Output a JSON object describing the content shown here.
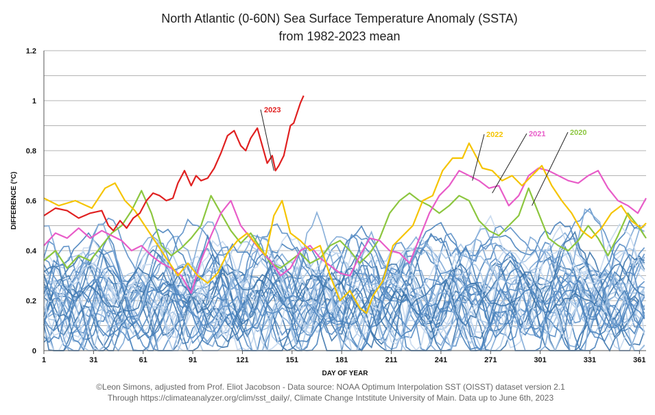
{
  "chart_data": {
    "type": "line",
    "title": "North Atlantic (0-60N) Sea Surface Temperature Anomaly (SSTA)",
    "subtitle": "from 1982-2023 mean",
    "xlabel": "DAY OF YEAR",
    "ylabel": "DIFFERENCE (°C)",
    "xlim": [
      1,
      365
    ],
    "ylim": [
      0,
      1.2
    ],
    "x_ticks": [
      1,
      31,
      61,
      91,
      121,
      151,
      181,
      211,
      241,
      271,
      301,
      331,
      361
    ],
    "y_ticks": [
      0,
      0.2,
      0.4,
      0.6,
      0.8,
      1,
      1.2
    ],
    "y_tick_labels": [
      "0",
      "0.2",
      "0.4",
      "0.6",
      "0.8",
      "1",
      "1.2"
    ],
    "grid": "horizontal",
    "highlighted_series": [
      {
        "name": "2023",
        "color": "#e02020",
        "x": [
          1,
          8,
          15,
          22,
          29,
          36,
          40,
          43,
          47,
          51,
          55,
          59,
          63,
          67,
          71,
          75,
          79,
          82,
          86,
          90,
          93,
          96,
          100,
          104,
          108,
          112,
          116,
          120,
          123,
          126,
          130,
          133,
          136,
          139,
          141,
          143,
          146,
          148,
          150,
          152,
          154,
          156,
          158
        ],
        "values": [
          0.54,
          0.57,
          0.56,
          0.53,
          0.55,
          0.56,
          0.5,
          0.48,
          0.52,
          0.49,
          0.53,
          0.55,
          0.6,
          0.63,
          0.62,
          0.6,
          0.61,
          0.67,
          0.72,
          0.66,
          0.7,
          0.68,
          0.69,
          0.73,
          0.79,
          0.86,
          0.88,
          0.82,
          0.8,
          0.85,
          0.89,
          0.82,
          0.75,
          0.78,
          0.72,
          0.74,
          0.78,
          0.84,
          0.9,
          0.91,
          0.95,
          0.99,
          1.02
        ]
      },
      {
        "name": "2022",
        "color": "#f5c400",
        "x": [
          1,
          10,
          20,
          30,
          38,
          44,
          50,
          56,
          62,
          70,
          76,
          82,
          88,
          94,
          100,
          106,
          112,
          118,
          124,
          130,
          135,
          140,
          145,
          150,
          156,
          162,
          168,
          174,
          180,
          186,
          192,
          196,
          200,
          206,
          212,
          218,
          224,
          230,
          236,
          242,
          248,
          254,
          258,
          262,
          266,
          272,
          278,
          284,
          290,
          296,
          302,
          308,
          314,
          320,
          326,
          332,
          338,
          344,
          350,
          356,
          362,
          365
        ],
        "values": [
          0.61,
          0.58,
          0.6,
          0.57,
          0.65,
          0.67,
          0.6,
          0.56,
          0.5,
          0.42,
          0.36,
          0.3,
          0.35,
          0.3,
          0.27,
          0.31,
          0.39,
          0.44,
          0.47,
          0.42,
          0.38,
          0.54,
          0.6,
          0.47,
          0.44,
          0.4,
          0.42,
          0.3,
          0.2,
          0.24,
          0.17,
          0.15,
          0.22,
          0.28,
          0.42,
          0.46,
          0.5,
          0.6,
          0.62,
          0.72,
          0.77,
          0.77,
          0.83,
          0.78,
          0.73,
          0.72,
          0.68,
          0.7,
          0.66,
          0.7,
          0.74,
          0.66,
          0.6,
          0.55,
          0.48,
          0.45,
          0.49,
          0.55,
          0.58,
          0.52,
          0.49,
          0.51
        ]
      },
      {
        "name": "2021",
        "color": "#e85cc8",
        "x": [
          1,
          8,
          15,
          22,
          29,
          36,
          42,
          48,
          54,
          60,
          66,
          72,
          78,
          84,
          90,
          96,
          102,
          108,
          114,
          120,
          126,
          132,
          138,
          144,
          150,
          156,
          162,
          168,
          174,
          180,
          186,
          192,
          198,
          204,
          210,
          216,
          222,
          228,
          234,
          240,
          246,
          252,
          258,
          264,
          270,
          276,
          282,
          288,
          294,
          300,
          306,
          312,
          318,
          324,
          330,
          336,
          342,
          348,
          354,
          360,
          365
        ],
        "values": [
          0.42,
          0.47,
          0.45,
          0.49,
          0.45,
          0.48,
          0.46,
          0.44,
          0.4,
          0.42,
          0.38,
          0.35,
          0.33,
          0.3,
          0.23,
          0.36,
          0.46,
          0.55,
          0.6,
          0.5,
          0.45,
          0.4,
          0.36,
          0.3,
          0.33,
          0.4,
          0.42,
          0.37,
          0.34,
          0.31,
          0.3,
          0.38,
          0.45,
          0.44,
          0.4,
          0.39,
          0.35,
          0.45,
          0.55,
          0.62,
          0.66,
          0.72,
          0.7,
          0.68,
          0.65,
          0.66,
          0.58,
          0.62,
          0.7,
          0.73,
          0.72,
          0.7,
          0.68,
          0.67,
          0.7,
          0.72,
          0.65,
          0.6,
          0.58,
          0.55,
          0.61
        ]
      },
      {
        "name": "2020",
        "color": "#8cc63f",
        "x": [
          1,
          8,
          15,
          22,
          29,
          36,
          42,
          48,
          54,
          60,
          66,
          72,
          78,
          84,
          90,
          96,
          102,
          108,
          114,
          120,
          126,
          132,
          138,
          144,
          150,
          156,
          162,
          168,
          174,
          180,
          186,
          192,
          198,
          204,
          210,
          216,
          222,
          228,
          234,
          240,
          246,
          252,
          258,
          264,
          270,
          276,
          282,
          288,
          294,
          300,
          306,
          312,
          318,
          324,
          330,
          336,
          342,
          348,
          354,
          360,
          365
        ],
        "values": [
          0.36,
          0.4,
          0.33,
          0.38,
          0.36,
          0.42,
          0.47,
          0.5,
          0.56,
          0.64,
          0.55,
          0.42,
          0.38,
          0.41,
          0.45,
          0.5,
          0.62,
          0.55,
          0.48,
          0.43,
          0.47,
          0.41,
          0.35,
          0.33,
          0.36,
          0.39,
          0.35,
          0.37,
          0.42,
          0.44,
          0.4,
          0.35,
          0.39,
          0.45,
          0.55,
          0.6,
          0.63,
          0.6,
          0.58,
          0.55,
          0.58,
          0.62,
          0.6,
          0.52,
          0.48,
          0.46,
          0.5,
          0.54,
          0.65,
          0.55,
          0.45,
          0.42,
          0.4,
          0.44,
          0.5,
          0.45,
          0.38,
          0.46,
          0.55,
          0.5,
          0.45
        ]
      }
    ],
    "background_series": {
      "description": "Earlier years 1982-2019",
      "colors": [
        "#3f77ad",
        "#5b8fc6",
        "#7ea9d6",
        "#a8c6e6",
        "#c5d8ee",
        "#4a83bd"
      ],
      "count": 38
    },
    "annotations": [
      "2023",
      "2022",
      "2021",
      "2020"
    ]
  },
  "footer": {
    "line1": "©Leon Simons, adjusted from Prof. Eliot Jacobson - Data source: NOAA Optimum Interpolation SST (OISST) dataset version 2.1",
    "line2": "Through https://climateanalyzer.org/clim/sst_daily/, Climate Change Intstitute University of Main. Data up to June 6th, 2023"
  }
}
